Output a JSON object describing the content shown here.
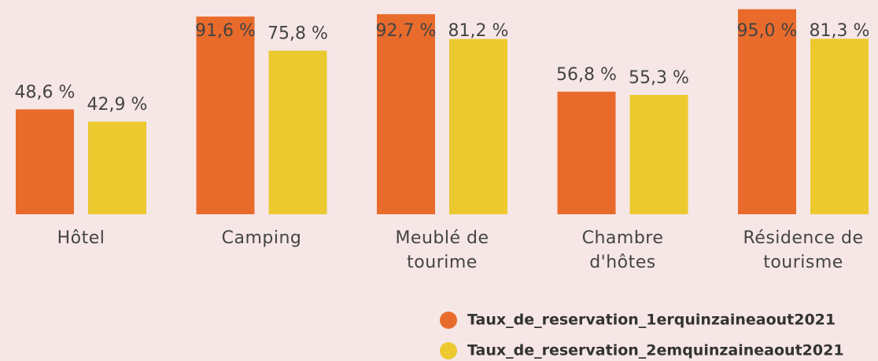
{
  "chart_data": {
    "type": "bar",
    "categories": [
      "Hôtel",
      "Camping",
      "Meublé de tourime",
      "Chambre d'hôtes",
      "Résidence de tourisme"
    ],
    "series": [
      {
        "name": "Taux_de_reservation_1erquinzaineaout2021",
        "color": "#e96b2b",
        "values": [
          48.6,
          91.6,
          92.7,
          56.8,
          95.0
        ],
        "value_labels": [
          "48,6 %",
          "91,6 %",
          "92,7 %",
          "56,8 %",
          "95,0 %"
        ]
      },
      {
        "name": "Taux_de_reservation_2emquinzaineaout2021",
        "color": "#ebc92f",
        "values": [
          42.9,
          75.8,
          81.2,
          55.3,
          81.3
        ],
        "value_labels": [
          "42,9 %",
          "75,8 %",
          "81,2 %",
          "55,3 %",
          "81,3 %"
        ]
      }
    ]
  }
}
